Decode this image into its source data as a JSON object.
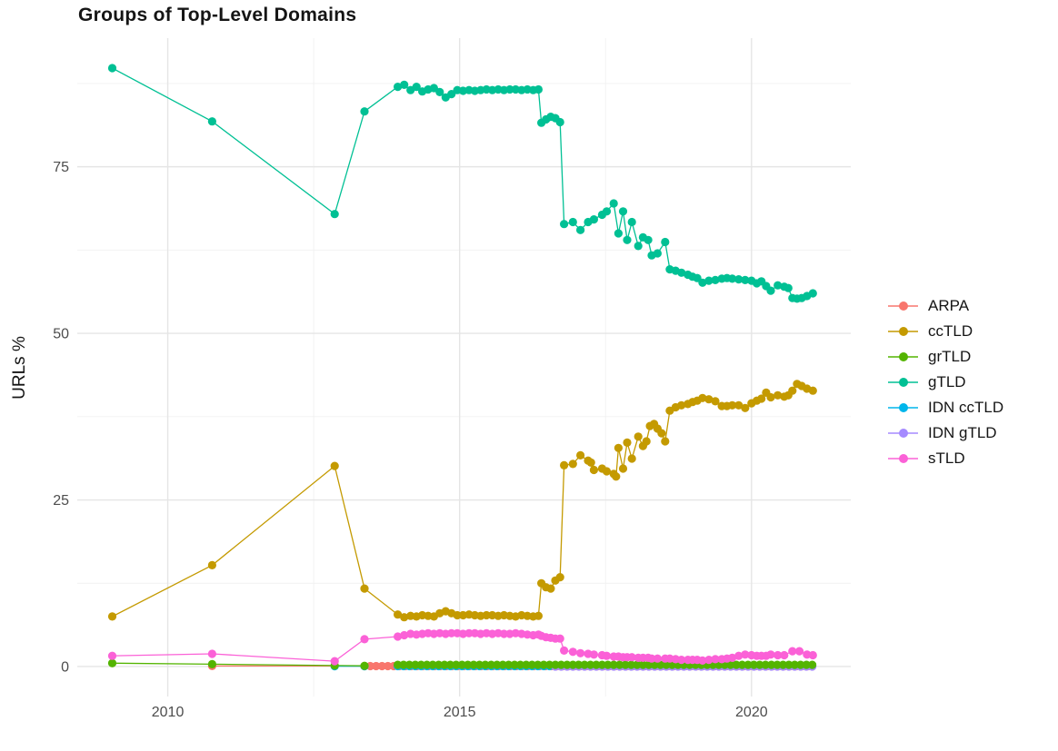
{
  "chart_data": {
    "type": "line",
    "title": "Groups of Top-Level Domains",
    "xlabel": "",
    "ylabel": "URLs %",
    "grid": true,
    "legend_position": "right",
    "xlim": [
      2008.45,
      2021.7
    ],
    "ylim": [
      -4.5,
      94.3
    ],
    "x_ticks": [
      {
        "value": 2010,
        "label": "2010"
      },
      {
        "value": 2015,
        "label": "2015"
      },
      {
        "value": 2020,
        "label": "2020"
      }
    ],
    "y_ticks": [
      {
        "value": 0,
        "label": "0"
      },
      {
        "value": 25,
        "label": "25"
      },
      {
        "value": 50,
        "label": "50"
      },
      {
        "value": 75,
        "label": "75"
      }
    ],
    "x_minor_ticks": [
      2012.5,
      2017.5
    ],
    "y_minor_ticks": [
      12.5,
      37.5,
      62.5,
      87.5
    ],
    "series": [
      {
        "name": "ARPA",
        "color": "#F8766D",
        "points": [
          [
            2010.76,
            0.08
          ],
          [
            2012.86,
            0.08
          ]
        ],
        "flat_segments": [
          {
            "from": 2013.37,
            "to": 2021.05,
            "step": 0.1,
            "y": 0.06
          }
        ]
      },
      {
        "name": "ccTLD",
        "color": "#C49A00",
        "points": [
          [
            2009.05,
            7.5
          ],
          [
            2010.76,
            15.2
          ],
          [
            2012.86,
            30.1
          ],
          [
            2013.37,
            11.7
          ],
          [
            2013.94,
            7.8
          ],
          [
            2014.05,
            7.4
          ],
          [
            2014.16,
            7.6
          ],
          [
            2014.26,
            7.5
          ],
          [
            2014.36,
            7.7
          ],
          [
            2014.46,
            7.6
          ],
          [
            2014.56,
            7.5
          ],
          [
            2014.66,
            8.0
          ],
          [
            2014.76,
            8.3
          ],
          [
            2014.86,
            8.0
          ],
          [
            2014.96,
            7.7
          ],
          [
            2015.06,
            7.7
          ],
          [
            2015.16,
            7.8
          ],
          [
            2015.26,
            7.7
          ],
          [
            2015.36,
            7.6
          ],
          [
            2015.46,
            7.7
          ],
          [
            2015.56,
            7.7
          ],
          [
            2015.66,
            7.6
          ],
          [
            2015.76,
            7.7
          ],
          [
            2015.86,
            7.6
          ],
          [
            2015.96,
            7.5
          ],
          [
            2016.06,
            7.7
          ],
          [
            2016.16,
            7.6
          ],
          [
            2016.26,
            7.5
          ],
          [
            2016.35,
            7.6
          ],
          [
            2016.4,
            12.5
          ],
          [
            2016.48,
            11.9
          ],
          [
            2016.56,
            11.7
          ],
          [
            2016.64,
            12.9
          ],
          [
            2016.72,
            13.4
          ],
          [
            2016.79,
            30.2
          ],
          [
            2016.94,
            30.4
          ],
          [
            2017.07,
            31.7
          ],
          [
            2017.2,
            30.9
          ],
          [
            2017.25,
            30.6
          ],
          [
            2017.3,
            29.5
          ],
          [
            2017.44,
            29.7
          ],
          [
            2017.52,
            29.3
          ],
          [
            2017.64,
            28.9
          ],
          [
            2017.68,
            28.5
          ],
          [
            2017.72,
            32.8
          ],
          [
            2017.8,
            29.7
          ],
          [
            2017.87,
            33.6
          ],
          [
            2017.95,
            31.2
          ],
          [
            2018.06,
            34.5
          ],
          [
            2018.14,
            33.1
          ],
          [
            2018.2,
            33.8
          ],
          [
            2018.26,
            36.1
          ],
          [
            2018.33,
            36.4
          ],
          [
            2018.39,
            35.7
          ],
          [
            2018.46,
            35.0
          ],
          [
            2018.52,
            33.8
          ],
          [
            2018.6,
            38.4
          ],
          [
            2018.7,
            38.9
          ],
          [
            2018.8,
            39.2
          ],
          [
            2018.91,
            39.4
          ],
          [
            2018.99,
            39.7
          ],
          [
            2019.07,
            39.9
          ],
          [
            2019.16,
            40.3
          ],
          [
            2019.27,
            40.1
          ],
          [
            2019.38,
            39.8
          ],
          [
            2019.49,
            39.1
          ],
          [
            2019.58,
            39.1
          ],
          [
            2019.67,
            39.2
          ],
          [
            2019.78,
            39.2
          ],
          [
            2019.89,
            38.8
          ],
          [
            2020.0,
            39.5
          ],
          [
            2020.09,
            39.9
          ],
          [
            2020.17,
            40.2
          ],
          [
            2020.25,
            41.1
          ],
          [
            2020.33,
            40.4
          ],
          [
            2020.45,
            40.7
          ],
          [
            2020.56,
            40.5
          ],
          [
            2020.63,
            40.7
          ],
          [
            2020.7,
            41.4
          ],
          [
            2020.78,
            42.4
          ],
          [
            2020.86,
            42.1
          ],
          [
            2020.95,
            41.7
          ],
          [
            2021.05,
            41.4
          ]
        ]
      },
      {
        "name": "grTLD",
        "color": "#53B400",
        "points": [
          [
            2009.05,
            0.5
          ],
          [
            2010.76,
            0.35
          ],
          [
            2012.86,
            0.15
          ],
          [
            2013.37,
            0.1
          ]
        ],
        "flat_segments": [
          {
            "from": 2013.94,
            "to": 2021.05,
            "step": 0.1,
            "y": 0.25
          }
        ]
      },
      {
        "name": "gTLD",
        "color": "#00C094",
        "points": [
          [
            2009.05,
            89.8
          ],
          [
            2010.76,
            81.8
          ],
          [
            2012.86,
            67.9
          ],
          [
            2013.37,
            83.3
          ],
          [
            2013.94,
            87.0
          ],
          [
            2014.05,
            87.3
          ],
          [
            2014.16,
            86.5
          ],
          [
            2014.26,
            87.0
          ],
          [
            2014.36,
            86.3
          ],
          [
            2014.46,
            86.6
          ],
          [
            2014.56,
            86.8
          ],
          [
            2014.66,
            86.2
          ],
          [
            2014.76,
            85.4
          ],
          [
            2014.86,
            85.9
          ],
          [
            2014.96,
            86.5
          ],
          [
            2015.06,
            86.4
          ],
          [
            2015.16,
            86.5
          ],
          [
            2015.26,
            86.4
          ],
          [
            2015.36,
            86.5
          ],
          [
            2015.46,
            86.6
          ],
          [
            2015.56,
            86.5
          ],
          [
            2015.66,
            86.6
          ],
          [
            2015.76,
            86.5
          ],
          [
            2015.86,
            86.6
          ],
          [
            2015.96,
            86.6
          ],
          [
            2016.06,
            86.5
          ],
          [
            2016.16,
            86.6
          ],
          [
            2016.26,
            86.5
          ],
          [
            2016.35,
            86.6
          ],
          [
            2016.4,
            81.6
          ],
          [
            2016.48,
            82.1
          ],
          [
            2016.56,
            82.5
          ],
          [
            2016.64,
            82.3
          ],
          [
            2016.72,
            81.7
          ],
          [
            2016.79,
            66.4
          ],
          [
            2016.94,
            66.7
          ],
          [
            2017.07,
            65.5
          ],
          [
            2017.2,
            66.7
          ],
          [
            2017.3,
            67.1
          ],
          [
            2017.44,
            67.8
          ],
          [
            2017.52,
            68.3
          ],
          [
            2017.64,
            69.5
          ],
          [
            2017.72,
            65.0
          ],
          [
            2017.8,
            68.3
          ],
          [
            2017.87,
            64.0
          ],
          [
            2017.95,
            66.7
          ],
          [
            2018.06,
            63.1
          ],
          [
            2018.14,
            64.4
          ],
          [
            2018.23,
            64.0
          ],
          [
            2018.29,
            61.7
          ],
          [
            2018.39,
            62.0
          ],
          [
            2018.52,
            63.7
          ],
          [
            2018.6,
            59.6
          ],
          [
            2018.7,
            59.4
          ],
          [
            2018.8,
            59.1
          ],
          [
            2018.91,
            58.8
          ],
          [
            2018.99,
            58.5
          ],
          [
            2019.07,
            58.3
          ],
          [
            2019.16,
            57.6
          ],
          [
            2019.27,
            57.9
          ],
          [
            2019.38,
            58.0
          ],
          [
            2019.49,
            58.2
          ],
          [
            2019.58,
            58.3
          ],
          [
            2019.67,
            58.2
          ],
          [
            2019.78,
            58.1
          ],
          [
            2019.89,
            58.0
          ],
          [
            2020.0,
            57.9
          ],
          [
            2020.09,
            57.5
          ],
          [
            2020.17,
            57.8
          ],
          [
            2020.25,
            57.1
          ],
          [
            2020.33,
            56.4
          ],
          [
            2020.45,
            57.2
          ],
          [
            2020.56,
            57.0
          ],
          [
            2020.63,
            56.8
          ],
          [
            2020.7,
            55.3
          ],
          [
            2020.78,
            55.2
          ],
          [
            2020.86,
            55.3
          ],
          [
            2020.95,
            55.6
          ],
          [
            2021.05,
            56.0
          ]
        ]
      },
      {
        "name": "IDN ccTLD",
        "color": "#00B6EB",
        "points": [
          [
            2012.86,
            0.05
          ],
          [
            2013.37,
            0.05
          ]
        ],
        "flat_segments": [
          {
            "from": 2013.94,
            "to": 2021.05,
            "step": 0.1,
            "y": 0.06
          }
        ]
      },
      {
        "name": "IDN gTLD",
        "color": "#A58AFF",
        "points": [],
        "flat_segments": [
          {
            "from": 2016.64,
            "to": 2021.05,
            "step": 0.1,
            "y": 0.0
          }
        ]
      },
      {
        "name": "sTLD",
        "color": "#FB61D7",
        "points": [
          [
            2009.05,
            1.6
          ],
          [
            2010.76,
            1.9
          ],
          [
            2012.86,
            0.8
          ],
          [
            2013.37,
            4.1
          ],
          [
            2013.94,
            4.5
          ],
          [
            2014.05,
            4.7
          ],
          [
            2014.16,
            4.9
          ],
          [
            2014.26,
            4.8
          ],
          [
            2014.36,
            4.9
          ],
          [
            2014.46,
            5.0
          ],
          [
            2014.56,
            4.9
          ],
          [
            2014.66,
            5.0
          ],
          [
            2014.76,
            4.9
          ],
          [
            2014.86,
            5.0
          ],
          [
            2014.96,
            5.0
          ],
          [
            2015.06,
            4.9
          ],
          [
            2015.16,
            5.0
          ],
          [
            2015.26,
            5.0
          ],
          [
            2015.36,
            4.9
          ],
          [
            2015.46,
            5.0
          ],
          [
            2015.56,
            4.9
          ],
          [
            2015.66,
            5.0
          ],
          [
            2015.76,
            4.9
          ],
          [
            2015.86,
            4.9
          ],
          [
            2015.96,
            5.0
          ],
          [
            2016.06,
            4.9
          ],
          [
            2016.16,
            4.8
          ],
          [
            2016.26,
            4.7
          ],
          [
            2016.35,
            4.8
          ],
          [
            2016.4,
            4.6
          ],
          [
            2016.48,
            4.4
          ],
          [
            2016.56,
            4.3
          ],
          [
            2016.64,
            4.2
          ],
          [
            2016.72,
            4.2
          ],
          [
            2016.79,
            2.4
          ],
          [
            2016.94,
            2.2
          ],
          [
            2017.07,
            2.0
          ],
          [
            2017.2,
            1.9
          ],
          [
            2017.3,
            1.8
          ],
          [
            2017.44,
            1.7
          ],
          [
            2017.52,
            1.6
          ],
          [
            2017.64,
            1.5
          ],
          [
            2017.72,
            1.5
          ],
          [
            2017.8,
            1.4
          ],
          [
            2017.87,
            1.4
          ],
          [
            2017.95,
            1.4
          ],
          [
            2018.06,
            1.3
          ],
          [
            2018.14,
            1.3
          ],
          [
            2018.23,
            1.3
          ],
          [
            2018.29,
            1.2
          ],
          [
            2018.39,
            1.2
          ],
          [
            2018.52,
            1.2
          ],
          [
            2018.6,
            1.2
          ],
          [
            2018.7,
            1.1
          ],
          [
            2018.8,
            1.0
          ],
          [
            2018.91,
            1.0
          ],
          [
            2018.99,
            1.0
          ],
          [
            2019.07,
            1.0
          ],
          [
            2019.16,
            0.9
          ],
          [
            2019.27,
            1.0
          ],
          [
            2019.38,
            1.1
          ],
          [
            2019.49,
            1.1
          ],
          [
            2019.58,
            1.2
          ],
          [
            2019.67,
            1.3
          ],
          [
            2019.78,
            1.6
          ],
          [
            2019.89,
            1.8
          ],
          [
            2020.0,
            1.7
          ],
          [
            2020.09,
            1.6
          ],
          [
            2020.17,
            1.6
          ],
          [
            2020.25,
            1.6
          ],
          [
            2020.33,
            1.8
          ],
          [
            2020.45,
            1.7
          ],
          [
            2020.56,
            1.7
          ],
          [
            2020.7,
            2.3
          ],
          [
            2020.82,
            2.3
          ],
          [
            2020.95,
            1.8
          ],
          [
            2021.05,
            1.7
          ]
        ]
      }
    ]
  }
}
